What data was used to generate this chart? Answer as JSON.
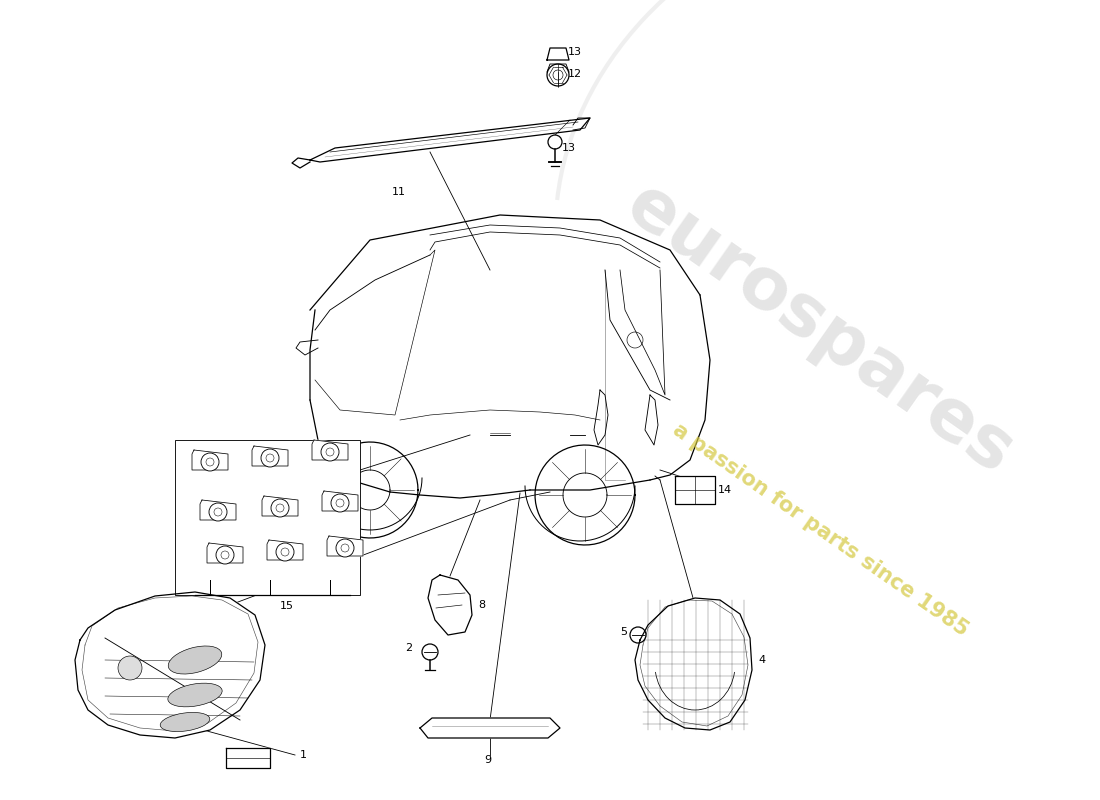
{
  "bg_color": "#ffffff",
  "watermark1": "eurospares",
  "watermark2": "a passion for parts since 1985",
  "lw": 0.9
}
